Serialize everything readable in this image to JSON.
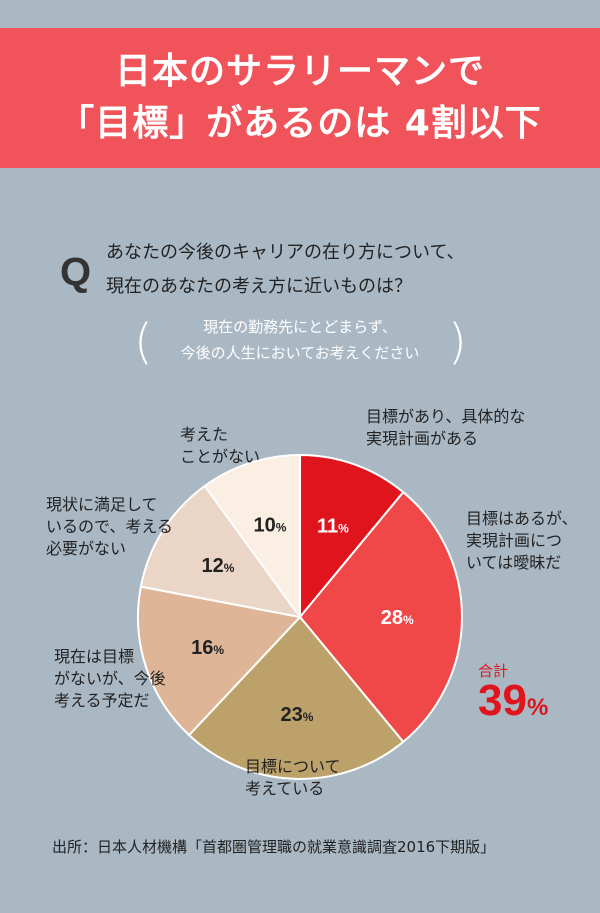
{
  "title": {
    "line1": "日本のサラリーマンで",
    "line2": "「目標」があるのは 4割以下"
  },
  "question": {
    "mark": "Q",
    "line1": "あなたの今後のキャリアの在り方について、",
    "line2": "現在のあなたの考え方に近いものは？"
  },
  "note": {
    "line1": "現在の勤務先にとどまらず、",
    "line2": "今後の人生においてお考えください"
  },
  "chart_data": {
    "type": "pie",
    "unit": "%",
    "categories": [
      "目標があり、具体的な実現計画がある",
      "目標はあるが、実現計画については曖昧だ",
      "目標について考えている",
      "現在は目標がないが、今後考える予定だ",
      "現状に満足しているので、考える必要がない",
      "考えたことがない"
    ],
    "values": [
      11,
      28,
      23,
      16,
      12,
      10
    ],
    "colors": [
      "#e0141c",
      "#f04848",
      "#bca26a",
      "#dfb597",
      "#ebd5c6",
      "#fbeee3"
    ],
    "value_labels": [
      "11",
      "28",
      "23",
      "16",
      "12",
      "10"
    ],
    "label_lines": [
      "目標があり、具体的な\n実現計画がある",
      "目標はあるが、\n実現計画につ\nいては曖昧だ",
      "目標について\n考えている",
      "現在は目標\nがないが、今後\n考える予定だ",
      "現状に満足して\nいるので、考える\n必要がない",
      "考えた\nことがない"
    ],
    "total_label": "合計",
    "total_value": "39",
    "total_unit": "%"
  },
  "source": "出所：日本人材機構「首都圏管理職の就業意識調査2016下期版」"
}
